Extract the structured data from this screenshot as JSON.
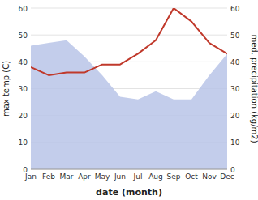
{
  "chart_data": {
    "type": "line",
    "categories": [
      "Jan",
      "Feb",
      "Mar",
      "Apr",
      "May",
      "Jun",
      "Jul",
      "Aug",
      "Sep",
      "Oct",
      "Nov",
      "Dec"
    ],
    "series": [
      {
        "type": "area",
        "axis": "y2",
        "color": "#b8c4e8",
        "values": [
          46,
          47,
          48,
          42,
          35,
          27,
          26,
          29,
          26,
          26,
          35,
          43
        ]
      },
      {
        "type": "line",
        "color": "#c0392b",
        "values": [
          38,
          35,
          36,
          36,
          39,
          39,
          43,
          48,
          60,
          55,
          47,
          43
        ]
      }
    ],
    "xlabel": "date (month)",
    "ylabel": "max temp (C)",
    "y2label": "med. precipitation (kg/m2)",
    "ylim": [
      0,
      60
    ],
    "yticks": [
      0,
      10,
      20,
      30,
      40,
      50,
      60
    ],
    "y2lim": [
      0,
      60
    ],
    "y2ticks": [
      0,
      10,
      20,
      30,
      40,
      50,
      60
    ],
    "grid": true
  }
}
